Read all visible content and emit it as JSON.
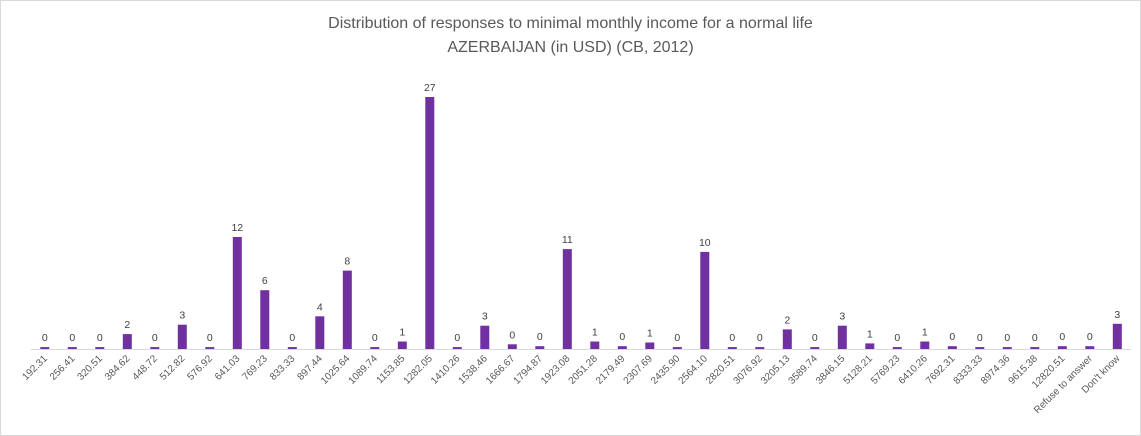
{
  "chart_data": {
    "type": "bar",
    "title": "Distribution of responses to minimal monthly income for a normal life",
    "subtitle": "AZERBAIJAN (in USD) (CB, 2012)",
    "categories": [
      "192.31",
      "256.41",
      "320.51",
      "384.62",
      "448.72",
      "512.82",
      "576.92",
      "641.03",
      "769.23",
      "833.33",
      "897.44",
      "1025.64",
      "1089.74",
      "1153.85",
      "1282.05",
      "1410.26",
      "1538.46",
      "1666.67",
      "1794.87",
      "1923.08",
      "2051.28",
      "2179.49",
      "2307.69",
      "2435.90",
      "2564.10",
      "2820.51",
      "3076.92",
      "3205.13",
      "3589.74",
      "3846.15",
      "5128.21",
      "5769.23",
      "6410.26",
      "7692.31",
      "8333.33",
      "8974.36",
      "9615.38",
      "12820.51",
      "Refuse to answer",
      "Don't know"
    ],
    "labels": [
      "0",
      "0",
      "0",
      "2",
      "0",
      "3",
      "0",
      "12",
      "6",
      "0",
      "4",
      "8",
      "0",
      "1",
      "27",
      "0",
      "3",
      "0",
      "0",
      "11",
      "1",
      "0",
      "1",
      "0",
      "10",
      "0",
      "0",
      "2",
      "0",
      "3",
      "1",
      "0",
      "1",
      "0",
      "0",
      "0",
      "0",
      "0",
      "0",
      "3"
    ],
    "values": [
      0.2,
      0.2,
      0.2,
      1.6,
      0.2,
      2.6,
      0.2,
      12,
      6.3,
      0.2,
      3.5,
      8.4,
      0.2,
      0.8,
      27,
      0.2,
      2.5,
      0.5,
      0.3,
      10.7,
      0.8,
      0.3,
      0.7,
      0.2,
      10.4,
      0.2,
      0.2,
      2.1,
      0.2,
      2.5,
      0.6,
      0.2,
      0.8,
      0.3,
      0.2,
      0.2,
      0.2,
      0.3,
      0.3,
      2.7
    ],
    "ylim": [
      0,
      27
    ],
    "xlabel": "",
    "ylabel": "",
    "grid": false,
    "legend": "none",
    "bar_color": "#7030a0"
  }
}
